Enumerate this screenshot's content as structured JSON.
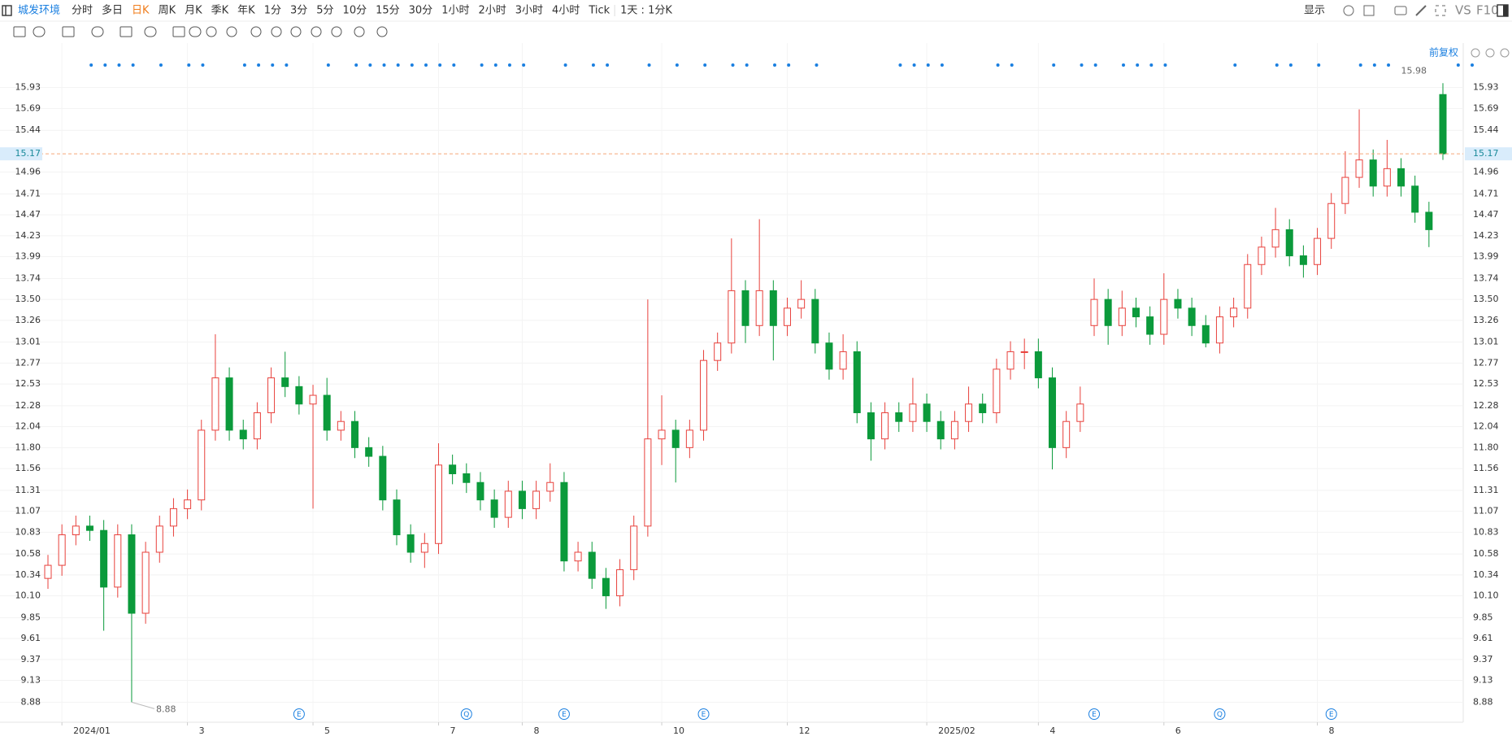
{
  "toolbar": {
    "symbol": "城发环境",
    "periods": [
      "分时",
      "多日",
      "日K",
      "周K",
      "月K",
      "季K",
      "年K",
      "1分",
      "3分",
      "5分",
      "10分",
      "15分",
      "30分",
      "1小时",
      "2小时",
      "3小时",
      "4小时",
      "Tick"
    ],
    "active_period": 2,
    "range": "1天 : 1分K",
    "display": "显示",
    "compare": "VS",
    "f10": "F10",
    "adjust": "前复权"
  },
  "chart_data": {
    "type": "candlestick",
    "categories": [
      null,
      "2024/01",
      null,
      null,
      null,
      null,
      null,
      null,
      null,
      null,
      "3",
      null,
      null,
      null,
      null,
      null,
      null,
      null,
      null,
      "5",
      null,
      null,
      null,
      null,
      null,
      null,
      null,
      null,
      "7",
      null,
      null,
      null,
      null,
      null,
      "8",
      null,
      null,
      null,
      null,
      null,
      null,
      null,
      null,
      null,
      "10",
      null,
      null,
      null,
      null,
      null,
      null,
      null,
      null,
      "12",
      null,
      null,
      null,
      null,
      null,
      null,
      null,
      null,
      null,
      "2025/02",
      null,
      null,
      null,
      null,
      null,
      null,
      null,
      "4",
      null,
      null,
      null,
      null,
      null,
      null,
      null,
      null,
      "6",
      null,
      null,
      null,
      null,
      null,
      null,
      null,
      null,
      null,
      null,
      "8",
      null,
      null,
      null,
      null,
      null,
      null,
      null,
      null,
      null
    ],
    "open": [
      10.3,
      10.45,
      10.8,
      10.9,
      10.85,
      10.2,
      10.8,
      9.9,
      10.6,
      10.9,
      11.1,
      11.2,
      12.0,
      12.6,
      12.0,
      11.9,
      12.2,
      12.6,
      12.5,
      12.3,
      12.4,
      12.0,
      12.1,
      11.8,
      11.7,
      11.2,
      10.8,
      10.6,
      10.7,
      11.6,
      11.5,
      11.4,
      11.2,
      11.0,
      11.3,
      11.1,
      11.3,
      11.4,
      10.5,
      10.6,
      10.3,
      10.1,
      10.4,
      10.9,
      11.9,
      12.0,
      11.8,
      12.0,
      12.8,
      13.0,
      13.6,
      13.2,
      13.6,
      13.2,
      13.4,
      13.5,
      13.0,
      12.7,
      12.9,
      12.2,
      11.9,
      12.2,
      12.1,
      12.3,
      12.1,
      11.9,
      12.1,
      12.3,
      12.2,
      12.7,
      12.9,
      12.9,
      12.6,
      11.8,
      12.1,
      13.2,
      13.5,
      13.2,
      13.4,
      13.3,
      13.1,
      13.5,
      13.4,
      13.2,
      13.0,
      13.3,
      13.4,
      13.9,
      14.1,
      14.3,
      14.0,
      13.9,
      14.2,
      14.6,
      14.9,
      15.1,
      14.8,
      15.0,
      14.8,
      14.5,
      15.85
    ],
    "high": [
      10.57,
      10.92,
      11.02,
      11.02,
      10.97,
      10.92,
      10.92,
      10.72,
      11.02,
      11.22,
      11.32,
      12.12,
      13.1,
      12.72,
      12.12,
      12.32,
      12.72,
      12.9,
      12.62,
      12.52,
      12.6,
      12.22,
      12.22,
      11.92,
      11.82,
      11.32,
      10.92,
      10.82,
      11.85,
      11.72,
      11.62,
      11.52,
      11.32,
      11.42,
      11.42,
      11.42,
      11.62,
      11.52,
      10.72,
      10.72,
      10.42,
      10.52,
      11.02,
      13.5,
      12.4,
      12.12,
      12.12,
      12.92,
      13.12,
      14.2,
      13.72,
      14.42,
      13.72,
      13.52,
      13.72,
      13.62,
      13.12,
      13.1,
      13.02,
      12.32,
      12.32,
      12.32,
      12.6,
      12.42,
      12.22,
      12.22,
      12.5,
      12.42,
      12.82,
      13.02,
      13.05,
      13.05,
      12.72,
      12.22,
      12.5,
      13.74,
      13.62,
      13.6,
      13.52,
      13.42,
      13.8,
      13.62,
      13.52,
      13.32,
      13.42,
      13.52,
      14.02,
      14.22,
      14.55,
      14.42,
      14.12,
      14.32,
      14.72,
      15.2,
      15.68,
      15.22,
      15.33,
      15.12,
      14.92,
      14.62,
      15.98
    ],
    "low": [
      10.18,
      10.33,
      10.68,
      10.73,
      9.7,
      10.08,
      8.88,
      9.78,
      10.48,
      10.78,
      10.98,
      11.08,
      11.88,
      11.88,
      11.78,
      11.78,
      12.08,
      12.38,
      12.18,
      11.1,
      11.88,
      11.88,
      11.68,
      11.58,
      11.08,
      10.68,
      10.48,
      10.42,
      10.58,
      11.38,
      11.28,
      11.08,
      10.88,
      10.88,
      10.98,
      10.98,
      11.18,
      10.38,
      10.38,
      10.18,
      9.95,
      9.98,
      10.28,
      10.78,
      11.6,
      11.4,
      11.68,
      11.88,
      12.68,
      12.88,
      13.0,
      13.08,
      12.8,
      13.08,
      13.28,
      12.88,
      12.58,
      12.58,
      12.08,
      11.65,
      11.78,
      11.98,
      11.98,
      11.98,
      11.78,
      11.78,
      11.98,
      12.08,
      12.08,
      12.58,
      12.7,
      12.48,
      11.55,
      11.68,
      11.98,
      13.08,
      12.98,
      13.08,
      13.18,
      12.98,
      12.98,
      13.28,
      13.08,
      12.95,
      12.88,
      13.18,
      13.28,
      13.78,
      13.98,
      13.88,
      13.75,
      13.78,
      14.08,
      14.48,
      14.78,
      14.68,
      14.68,
      14.68,
      14.38,
      14.1,
      15.1
    ],
    "close": [
      10.45,
      10.8,
      10.9,
      10.85,
      10.2,
      10.8,
      9.9,
      10.6,
      10.9,
      11.1,
      11.2,
      12.0,
      12.6,
      12.0,
      11.9,
      12.2,
      12.6,
      12.5,
      12.3,
      12.4,
      12.0,
      12.1,
      11.8,
      11.7,
      11.2,
      10.8,
      10.6,
      10.7,
      11.6,
      11.5,
      11.4,
      11.2,
      11.0,
      11.3,
      11.1,
      11.3,
      11.4,
      10.5,
      10.6,
      10.3,
      10.1,
      10.4,
      10.9,
      11.9,
      12.0,
      11.8,
      12.0,
      12.8,
      13.0,
      13.6,
      13.2,
      13.6,
      13.2,
      13.4,
      13.5,
      13.0,
      12.7,
      12.9,
      12.2,
      11.9,
      12.2,
      12.1,
      12.3,
      12.1,
      11.9,
      12.1,
      12.3,
      12.2,
      12.7,
      12.9,
      12.9,
      12.6,
      11.8,
      12.1,
      12.3,
      13.5,
      13.2,
      13.4,
      13.3,
      13.1,
      13.5,
      13.4,
      13.2,
      13.0,
      13.3,
      13.4,
      13.9,
      14.1,
      14.3,
      14.0,
      13.9,
      14.2,
      14.6,
      14.9,
      15.1,
      14.8,
      15.0,
      14.8,
      14.5,
      14.3,
      15.17
    ],
    "up_color": "#e8413c",
    "down_color": "#0b9a3b",
    "current_price": 15.17,
    "ylim": [
      8.65,
      16.44
    ],
    "yticks": [
      8.88,
      9.13,
      9.37,
      9.61,
      9.85,
      {
        "value": 10.1,
        "label": "10.10"
      },
      10.34,
      10.58,
      10.83,
      11.07,
      11.31,
      11.56,
      {
        "value": 11.8,
        "label": "11.80"
      },
      12.04,
      12.28,
      12.53,
      12.77,
      13.01,
      13.26,
      {
        "value": 13.5,
        "label": "13.50"
      },
      13.74,
      13.99,
      14.23,
      14.47,
      14.71,
      14.96,
      15.44,
      15.69,
      15.93
    ],
    "grid": true,
    "events": [
      {
        "index": 18,
        "label": "E"
      },
      {
        "index": 30,
        "label": "Q"
      },
      {
        "index": 37,
        "label": "E"
      },
      {
        "index": 47,
        "label": "E"
      },
      {
        "index": 75,
        "label": "E"
      },
      {
        "index": 84,
        "label": "Q"
      },
      {
        "index": 92,
        "label": "E"
      }
    ]
  }
}
